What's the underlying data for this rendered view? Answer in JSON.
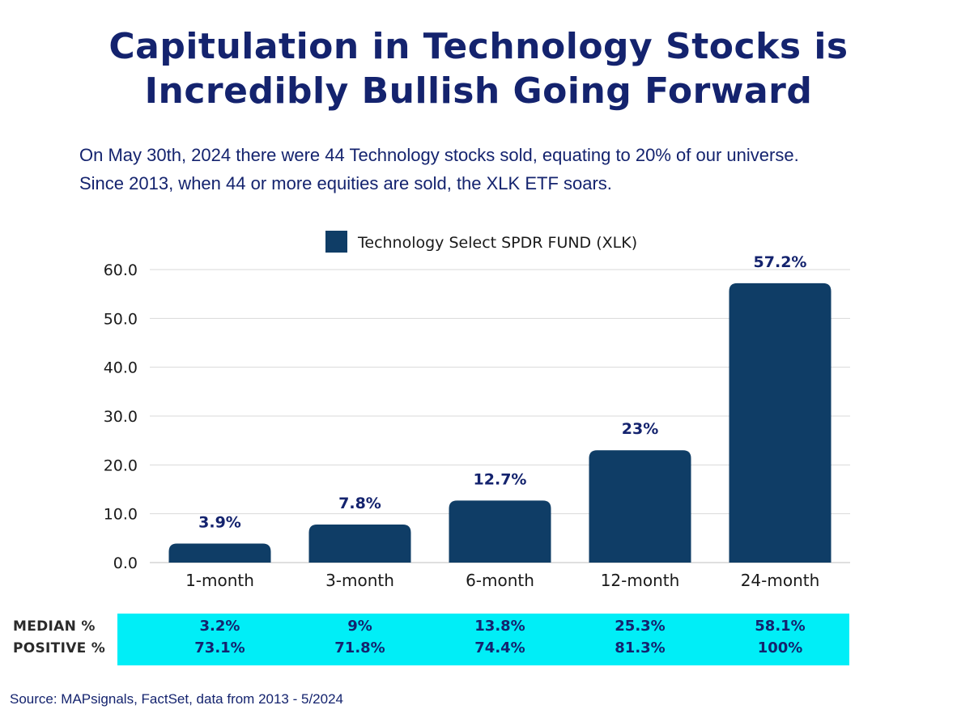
{
  "title_lines": [
    "Capitulation in Technology Stocks is",
    "Incredibly Bullish Going Forward"
  ],
  "subtitle_lines": [
    "On May 30th, 2024 there were 44 Technology stocks sold, equating to 20% of our universe.",
    "Since 2013, when 44 or more equities are sold, the XLK ETF soars."
  ],
  "chart_data": {
    "type": "bar",
    "categories": [
      "1-month",
      "3-month",
      "6-month",
      "12-month",
      "24-month"
    ],
    "series": [
      {
        "name": "Technology Select SPDR FUND (XLK)",
        "values": [
          3.9,
          7.8,
          12.7,
          23,
          57.2
        ],
        "labels": [
          "3.9%",
          "7.8%",
          "12.7%",
          "23%",
          "57.2%"
        ],
        "color": "#0f3d66"
      }
    ],
    "ylim": [
      0,
      60
    ],
    "yticks": [
      "0.0",
      "10.0",
      "20.0",
      "30.0",
      "40.0",
      "50.0",
      "60.0"
    ],
    "legend_position": "top-center",
    "grid": true
  },
  "stats": {
    "median_label": "MEDIAN %",
    "positive_label": "POSITIVE %",
    "median": [
      "3.2%",
      "9%",
      "13.8%",
      "25.3%",
      "58.1%"
    ],
    "positive": [
      "73.1%",
      "71.8%",
      "74.4%",
      "81.3%",
      "100%"
    ],
    "band_color": "#00eef7"
  },
  "source": "Source: MAPsignals, FactSet, data from 2013 - 5/2024"
}
